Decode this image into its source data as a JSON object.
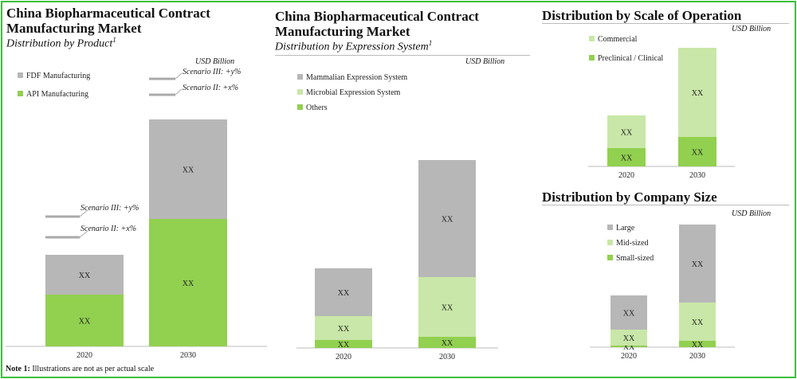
{
  "colors": {
    "fdf": "#b7b7b7",
    "api": "#92d050",
    "mammalian": "#b7b7b7",
    "microbial": "#c9e7a8",
    "others": "#92d050",
    "commercial": "#c9e7a8",
    "preclinical": "#92d050",
    "large": "#b7b7b7",
    "midsized": "#c9e7a8",
    "smallsized": "#92d050",
    "border": "#3cbf3c"
  },
  "panel1": {
    "title": "China Biopharmaceutical Contract Manufacturing Market",
    "subtitle": "Distribution by Product",
    "subtitle_sup": "1",
    "unit": "USD Billion",
    "scenarios": {
      "2020": [
        "Scenario III: +y%",
        "Scenario II: +x%"
      ],
      "2030": [
        "Scenario III: +y%",
        "Scenario II: +x%"
      ]
    }
  },
  "panel2": {
    "title": "China Biopharmaceutical Contract Manufacturing Market",
    "subtitle": "Distribution by Expression System",
    "subtitle_sup": "1",
    "unit": "USD Billion"
  },
  "panel3": {
    "title": "Distribution by Scale of Operation",
    "unit": "USD Billion"
  },
  "panel4": {
    "title": "Distribution by Company Size",
    "unit": "USD Billion"
  },
  "note": {
    "label": "Note 1:",
    "text": "Illustrations are not as per actual scale"
  },
  "chart_data": [
    {
      "type": "bar",
      "stacked": true,
      "title": "Distribution by Product",
      "categories": [
        "2020",
        "2030"
      ],
      "series": [
        {
          "name": "API Manufacturing",
          "values": [
            65,
            160
          ],
          "labels": [
            "XX",
            "XX"
          ],
          "color_key": "api"
        },
        {
          "name": "FDF Manufacturing",
          "values": [
            50,
            125
          ],
          "labels": [
            "XX",
            "XX"
          ],
          "color_key": "fdf"
        }
      ],
      "legend": [
        "FDF Manufacturing",
        "API Manufacturing"
      ],
      "ylim": [
        0,
        320
      ]
    },
    {
      "type": "bar",
      "stacked": true,
      "title": "Distribution by Expression System",
      "categories": [
        "2020",
        "2030"
      ],
      "series": [
        {
          "name": "Others",
          "values": [
            10,
            14
          ],
          "labels": [
            "XX",
            "XX"
          ],
          "color_key": "others"
        },
        {
          "name": "Microbial Expression System",
          "values": [
            30,
            75
          ],
          "labels": [
            "XX",
            "XX"
          ],
          "color_key": "microbial"
        },
        {
          "name": "Mammalian Expression System",
          "values": [
            60,
            147
          ],
          "labels": [
            "XX",
            "XX"
          ],
          "color_key": "mammalian"
        }
      ],
      "legend": [
        "Mammalian Expression System",
        "Microbial Expression System",
        "Others"
      ],
      "ylim": [
        0,
        310
      ]
    },
    {
      "type": "bar",
      "stacked": true,
      "title": "Distribution by Scale of Operation",
      "categories": [
        "2020",
        "2030"
      ],
      "series": [
        {
          "name": "Preclinical / Clinical",
          "values": [
            23,
            37
          ],
          "labels": [
            "XX",
            "XX"
          ],
          "color_key": "preclinical"
        },
        {
          "name": "Commercial",
          "values": [
            41,
            112
          ],
          "labels": [
            "XX",
            "XX"
          ],
          "color_key": "commercial"
        }
      ],
      "legend": [
        "Commercial",
        "Preclinical / Clinical"
      ],
      "ylim": [
        0,
        170
      ]
    },
    {
      "type": "bar",
      "stacked": true,
      "title": "Distribution by Company Size",
      "categories": [
        "2020",
        "2030"
      ],
      "series": [
        {
          "name": "Small-sized",
          "values": [
            2,
            8
          ],
          "labels": [
            "XX",
            "XX"
          ],
          "color_key": "smallsized"
        },
        {
          "name": "Mid-sized",
          "values": [
            20,
            48
          ],
          "labels": [
            "XX",
            "XX"
          ],
          "color_key": "midsized"
        },
        {
          "name": "Large",
          "values": [
            43,
            98
          ],
          "labels": [
            "XX",
            "XX"
          ],
          "color_key": "large"
        }
      ],
      "legend": [
        "Large",
        "Mid-sized",
        "Small-sized"
      ],
      "ylim": [
        0,
        170
      ]
    }
  ]
}
